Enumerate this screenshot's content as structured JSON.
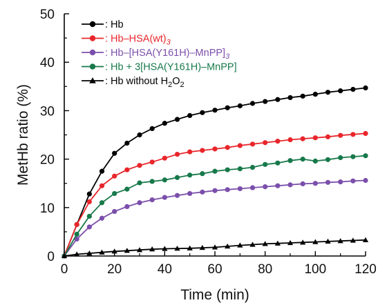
{
  "chart_data": {
    "type": "line",
    "xlabel": "Time (min)",
    "ylabel": "MetHb ratio (%)",
    "xlim": [
      0,
      120
    ],
    "ylim": [
      0,
      50
    ],
    "x_ticks": [
      "0",
      "20",
      "40",
      "60",
      "80",
      "100",
      "120"
    ],
    "y_ticks": [
      "0",
      "10",
      "20",
      "30",
      "40",
      "50"
    ],
    "grid": false,
    "legend_position": "top-left",
    "x": [
      0,
      5,
      10,
      15,
      20,
      25,
      30,
      35,
      40,
      45,
      50,
      55,
      60,
      65,
      70,
      75,
      80,
      85,
      90,
      95,
      100,
      105,
      110,
      115,
      120
    ],
    "series": [
      {
        "name": "Hb",
        "legend": {
          "prefix": ": Hb"
        },
        "color": "#000000",
        "marker": "circle",
        "values": [
          0,
          6.5,
          12.8,
          17.5,
          21.2,
          23.3,
          25.0,
          26.3,
          27.4,
          28.2,
          29.0,
          29.6,
          30.1,
          30.6,
          31.0,
          31.5,
          31.9,
          32.3,
          32.7,
          33.0,
          33.4,
          33.8,
          34.1,
          34.4,
          34.7
        ]
      },
      {
        "name": "Hb–HSA(wt)3",
        "legend": {
          "prefix": ": Hb–HSA(wt)",
          "sub": "3",
          "sub_italic": true
        },
        "color": "#e8262b",
        "marker": "circle",
        "values": [
          0,
          6.5,
          11.2,
          14.5,
          16.5,
          17.8,
          18.7,
          19.4,
          20.2,
          21.0,
          21.5,
          21.8,
          22.1,
          22.4,
          22.8,
          23.1,
          23.4,
          23.7,
          24.0,
          24.2,
          24.4,
          24.6,
          24.9,
          25.1,
          25.3
        ]
      },
      {
        "name": "Hb–[HSA(Y161H)–MnPP]3",
        "legend": {
          "prefix": ": Hb–[HSA(Y161H)–MnPP]",
          "sub": "3",
          "sub_italic": true
        },
        "color": "#7b4fab",
        "marker": "circle",
        "values": [
          0,
          3.5,
          6.0,
          7.8,
          9.2,
          10.2,
          11.0,
          11.6,
          12.1,
          12.5,
          12.9,
          13.2,
          13.5,
          13.7,
          13.9,
          14.1,
          14.3,
          14.5,
          14.7,
          14.9,
          15.0,
          15.2,
          15.3,
          15.5,
          15.6
        ]
      },
      {
        "name": "Hb + 3[HSA(Y161H)–MnPP]",
        "legend": {
          "prefix": ": Hb + 3[HSA(Y161H)–MnPP]"
        },
        "color": "#17794a",
        "marker": "circle",
        "values": [
          0,
          4.5,
          8.2,
          11.0,
          12.9,
          13.8,
          15.1,
          15.4,
          15.7,
          16.2,
          16.7,
          17.0,
          17.5,
          17.8,
          18.0,
          18.3,
          18.9,
          19.2,
          19.7,
          20.0,
          19.6,
          19.9,
          20.3,
          20.5,
          20.7
        ]
      },
      {
        "name": "Hb without H2O2",
        "legend": {
          "prefix": ": Hb without H",
          "sub": "2",
          "mid": "O",
          "sub2": "2"
        },
        "color": "#000000",
        "marker": "triangle",
        "values": [
          0,
          0.35,
          0.55,
          0.75,
          0.95,
          1.1,
          1.25,
          1.4,
          1.5,
          1.55,
          1.6,
          1.7,
          1.8,
          2.0,
          2.2,
          2.35,
          2.5,
          2.6,
          2.7,
          2.8,
          2.9,
          3.0,
          3.1,
          3.2,
          3.3
        ]
      }
    ]
  }
}
